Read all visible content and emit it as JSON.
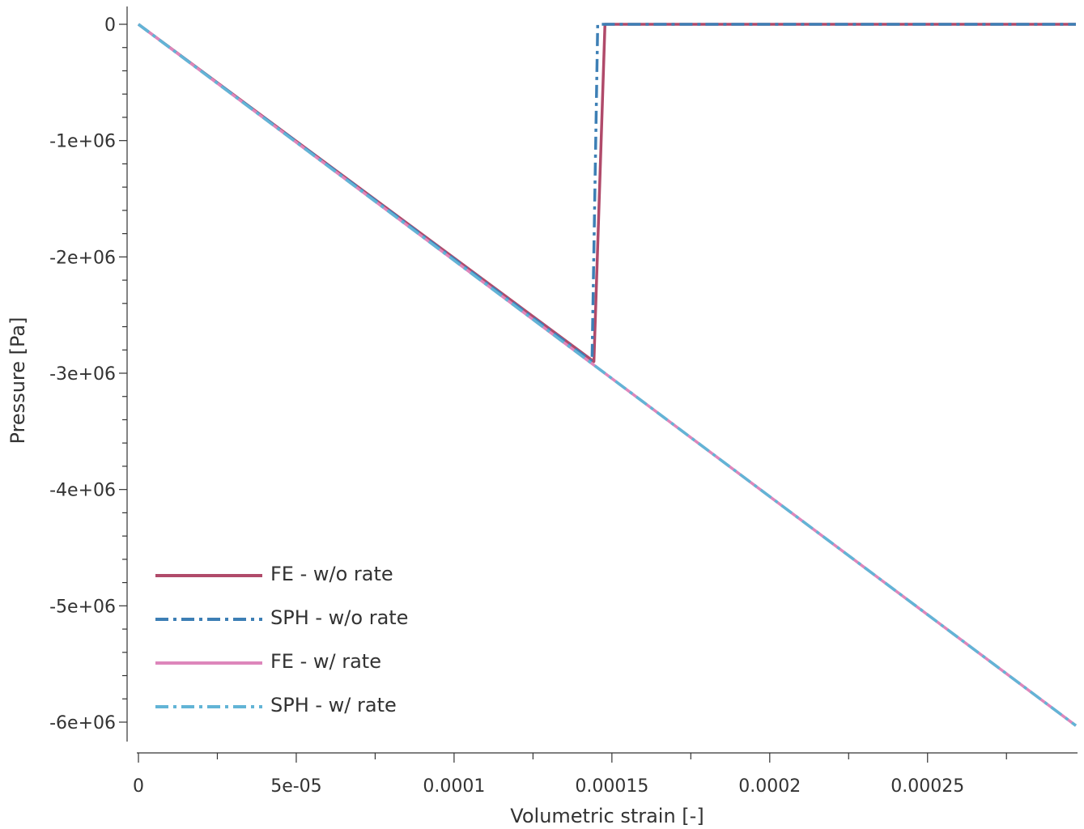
{
  "chart_data": {
    "type": "line",
    "title": "",
    "xlabel": "Volumetric strain [-]",
    "ylabel": "Pressure [Pa]",
    "xlim": [
      0,
      0.000297
    ],
    "ylim": [
      -6200000,
      150000
    ],
    "x_ticks": [
      {
        "value": 0,
        "label": "0"
      },
      {
        "value": 5e-05,
        "label": "5e-05"
      },
      {
        "value": 0.0001,
        "label": "0.0001"
      },
      {
        "value": 0.00015,
        "label": "0.00015"
      },
      {
        "value": 0.0002,
        "label": "0.0002"
      },
      {
        "value": 0.00025,
        "label": "0.00025"
      }
    ],
    "x_minor_step": 2.5e-05,
    "y_ticks": [
      {
        "value": 0,
        "label": "0"
      },
      {
        "value": -1000000,
        "label": "-1e+06"
      },
      {
        "value": -2000000,
        "label": "-2e+06"
      },
      {
        "value": -3000000,
        "label": "-3e+06"
      },
      {
        "value": -4000000,
        "label": "-4e+06"
      },
      {
        "value": -5000000,
        "label": "-5e+06"
      },
      {
        "value": -6000000,
        "label": "-6e+06"
      }
    ],
    "y_minor_step": 200000,
    "grid": false,
    "legend_position": "bottom-left",
    "series": [
      {
        "name": "FE - w/o rate",
        "color": "#b04a6a",
        "dash": "solid",
        "x": [
          0,
          0.0001443,
          0.0001478,
          0.000297
        ],
        "y": [
          0,
          -2900000,
          0,
          0
        ]
      },
      {
        "name": "SPH - w/o rate",
        "color": "#3d7fb5",
        "dash": "dashdot",
        "x": [
          0,
          0.0001437,
          0.0001455,
          0.000297
        ],
        "y": [
          0,
          -2900000,
          0,
          0
        ]
      },
      {
        "name": "FE - w/ rate",
        "color": "#dd86bb",
        "dash": "solid",
        "x": [
          0,
          0.000297
        ],
        "y": [
          0,
          -6030000
        ]
      },
      {
        "name": "SPH - w/ rate",
        "color": "#62b4d6",
        "dash": "dashdot",
        "x": [
          0,
          0.000297
        ],
        "y": [
          0,
          -6030000
        ]
      }
    ]
  }
}
